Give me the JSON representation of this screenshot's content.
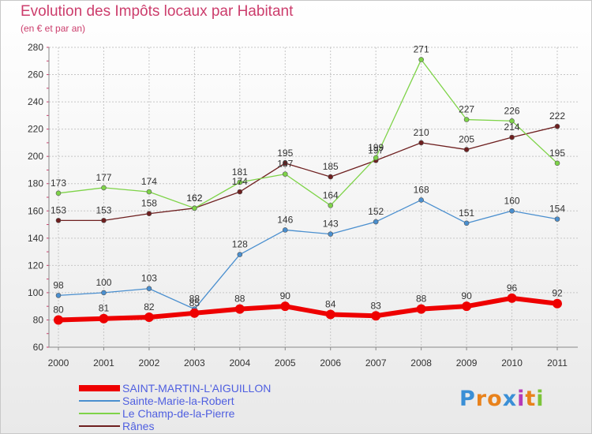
{
  "chart_data": {
    "type": "line",
    "title": "Evolution des Impôts locaux par Habitant",
    "subtitle": "(en € et par an)",
    "x": [
      "2000",
      "2001",
      "2002",
      "2003",
      "2004",
      "2005",
      "2006",
      "2007",
      "2008",
      "2009",
      "2010",
      "2011"
    ],
    "ylim": [
      60,
      280
    ],
    "yticks": [
      60,
      80,
      100,
      120,
      140,
      160,
      180,
      200,
      220,
      240,
      260,
      280
    ],
    "grid": true,
    "legend_position": "bottom-left",
    "series": [
      {
        "name": "SAINT-MARTIN-L'AIGUILLON",
        "color": "#ee0000",
        "values": [
          80,
          81,
          82,
          85,
          88,
          90,
          84,
          83,
          88,
          90,
          96,
          92
        ]
      },
      {
        "name": "Sainte-Marie-la-Robert",
        "color": "#4a8fcf",
        "values": [
          98,
          100,
          103,
          88,
          128,
          146,
          143,
          152,
          168,
          151,
          160,
          154
        ]
      },
      {
        "name": "Le Champ-de-la-Pierre",
        "color": "#7ed348",
        "values": [
          173,
          177,
          174,
          162,
          181,
          187,
          164,
          199,
          271,
          227,
          226,
          195
        ]
      },
      {
        "name": "Rânes",
        "color": "#6e1f1f",
        "values": [
          153,
          153,
          158,
          162,
          174,
          195,
          185,
          197,
          210,
          205,
          214,
          222
        ]
      }
    ],
    "data_labels": [
      [
        80,
        81,
        82,
        85,
        88,
        90,
        84,
        83,
        88,
        90,
        96,
        92
      ],
      [
        98,
        100,
        103,
        88,
        128,
        146,
        143,
        152,
        168,
        151,
        160,
        154
      ],
      [
        173,
        177,
        174,
        162,
        181,
        187,
        164,
        199,
        271,
        227,
        226,
        195
      ],
      [
        153,
        153,
        158,
        162,
        174,
        195,
        185,
        197,
        210,
        205,
        214,
        222
      ]
    ]
  },
  "logo": {
    "text": "Proxiti",
    "letter_colors": [
      "#3a8fd6",
      "#e8821c",
      "#e8821c",
      "#3a8fd6",
      "#b63ab8",
      "#e8821c",
      "#7cc43a"
    ]
  }
}
